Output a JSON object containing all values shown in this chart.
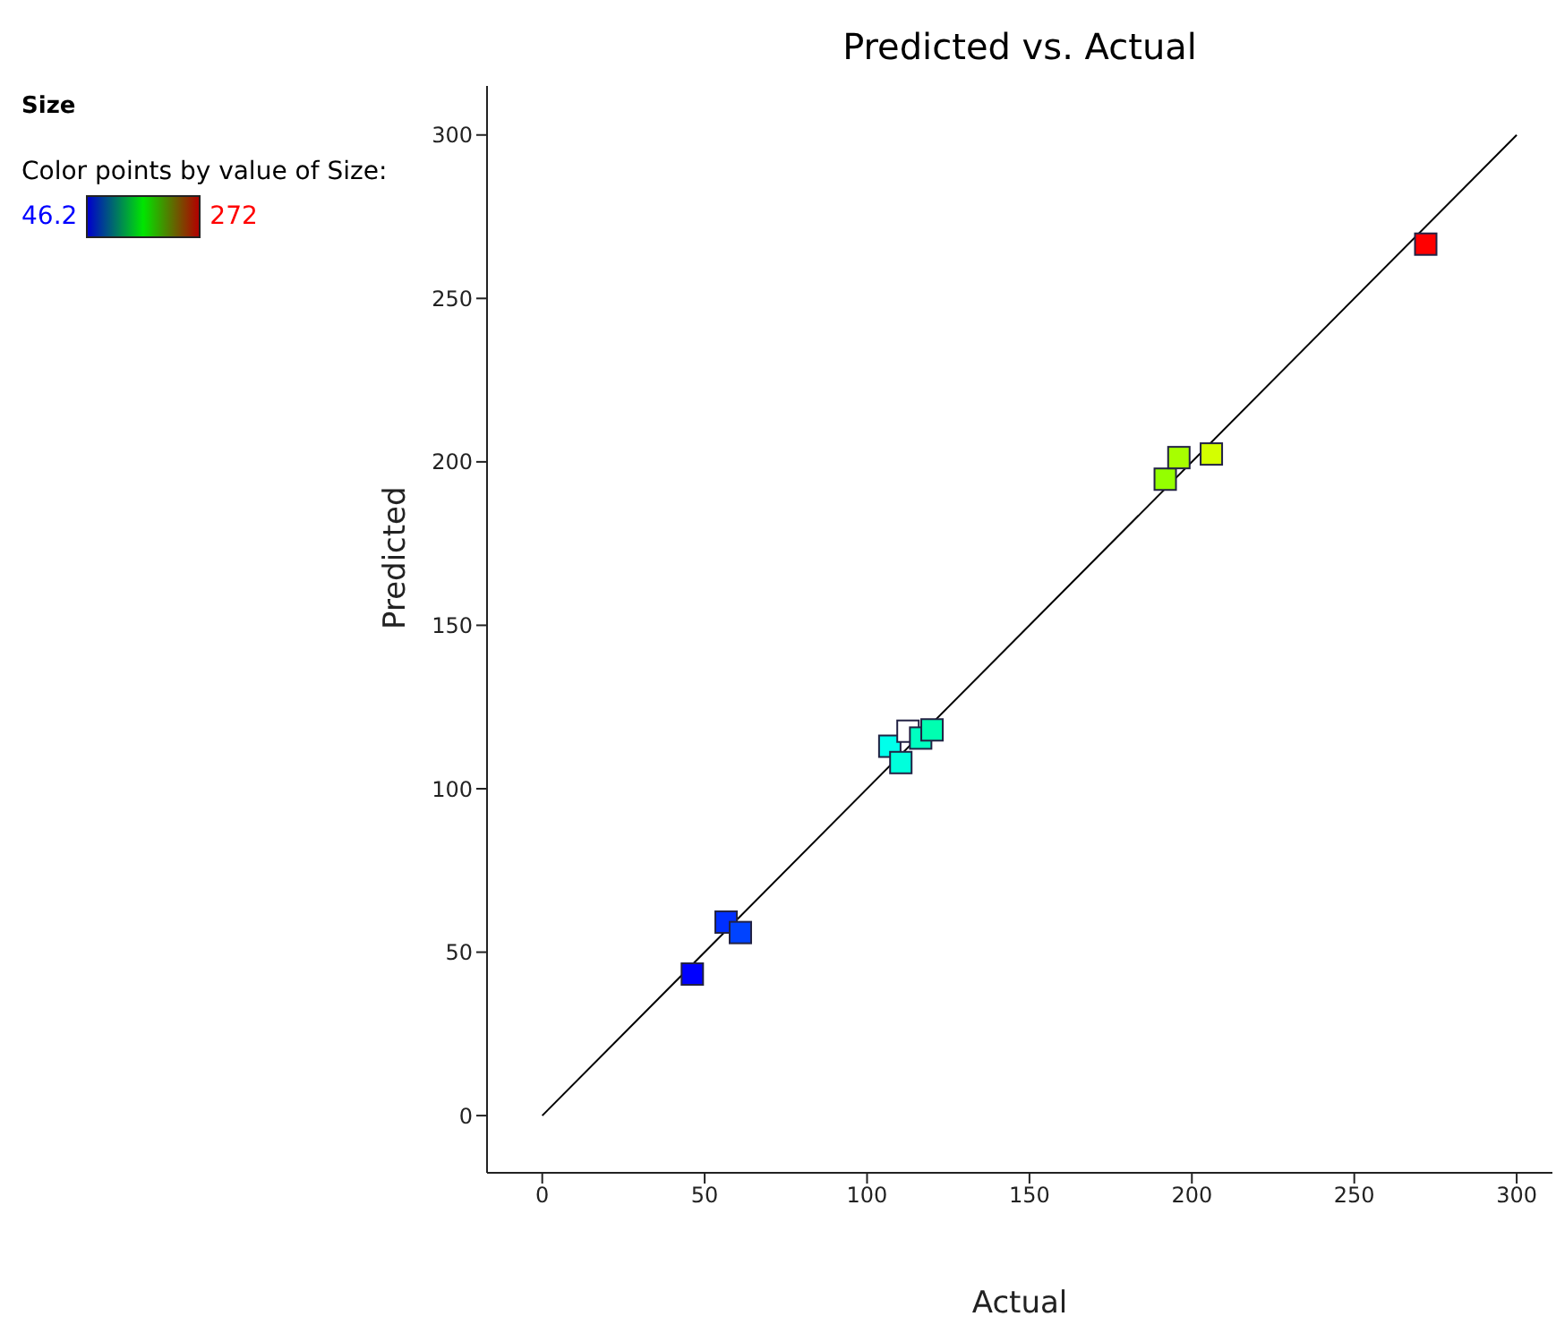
{
  "chart_data": {
    "type": "scatter",
    "title": "Predicted vs. Actual",
    "xlabel": "Actual",
    "ylabel": "Predicted",
    "annotations": [
      "Size",
      "Color points by value of Size:",
      "46.2",
      "272"
    ],
    "xlim": [
      -17,
      311
    ],
    "ylim": [
      -17.5,
      315
    ],
    "xticks": [
      0,
      50,
      100,
      150,
      200,
      250,
      300
    ],
    "yticks": [
      0,
      50,
      100,
      150,
      200,
      250,
      300
    ],
    "grid": false,
    "legend": false,
    "marker": "square",
    "series": [
      {
        "type": "scatter",
        "x": [
          46.2,
          56.6,
          61,
          107,
          110.4,
          112.6,
          116.5,
          120,
          191.8,
          196,
          206,
          272
        ],
        "values": [
          43.3,
          59.2,
          56,
          113,
          108,
          117.6,
          115.5,
          118,
          194.7,
          201.3,
          202.4,
          266.6
        ],
        "colors": [
          "#0000ff",
          "#002fff",
          "#0043ff",
          "#00ffeb",
          "#00ffdc",
          "#ffffff",
          "#00ffc1",
          "#00ffb1",
          "#94ff00",
          "#a7ff00",
          "#d4ff00",
          "#ff0000"
        ]
      },
      {
        "type": "line",
        "x": [
          0,
          300
        ],
        "values": [
          0,
          300
        ],
        "color": "#000000",
        "marker": "none"
      }
    ]
  }
}
